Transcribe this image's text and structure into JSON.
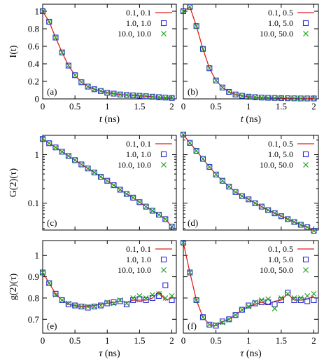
{
  "colors": {
    "line": "#e0201b",
    "square": "#2a2ad8",
    "cross": "#20a020"
  },
  "chart_data": [
    {
      "id": "a",
      "type": "line+scatter",
      "scale": "linear",
      "panel_label": "(a)",
      "xlabel_var": "t",
      "xlabel_unit": " (ns)",
      "ylabel": "I(t)",
      "xlim": [
        0,
        2.07
      ],
      "ylim": [
        0,
        1.08
      ],
      "xticks": [
        0,
        0.5,
        1,
        1.5,
        2
      ],
      "xticklabels": [
        "0",
        "0.5",
        "1",
        "1.5",
        "2"
      ],
      "yticks": [
        0,
        0.2,
        0.4,
        0.6,
        0.8,
        1
      ],
      "yticklabels": [
        "0",
        "0.2",
        "0.4",
        "0.6",
        "0.8",
        "1"
      ],
      "show_xticklabels": true,
      "show_yticklabels": true,
      "legend": [
        "0.1, 0.1",
        "1.0, 1.0",
        "10.0, 10.0"
      ],
      "x": [
        0,
        0.1,
        0.2,
        0.3,
        0.4,
        0.5,
        0.6,
        0.7,
        0.8,
        0.9,
        1.0,
        1.1,
        1.2,
        1.3,
        1.4,
        1.5,
        1.6,
        1.7,
        1.8,
        1.9,
        2.0
      ],
      "series": [
        {
          "name": "0.1, 0.1",
          "marker": "line",
          "values": [
            1.0,
            0.88,
            0.7,
            0.53,
            0.38,
            0.27,
            0.19,
            0.14,
            0.11,
            0.09,
            0.07,
            0.06,
            0.05,
            0.045,
            0.04,
            0.035,
            0.03,
            0.025,
            0.02,
            0.015,
            0.01
          ]
        },
        {
          "name": "1.0, 1.0",
          "marker": "square",
          "values": [
            1.0,
            0.88,
            0.7,
            0.53,
            0.38,
            0.27,
            0.19,
            0.14,
            0.11,
            0.09,
            0.07,
            0.06,
            0.05,
            0.045,
            0.04,
            0.035,
            0.03,
            0.025,
            0.02,
            0.015,
            0.01
          ]
        },
        {
          "name": "10.0, 10.0",
          "marker": "cross",
          "values": [
            1.0,
            0.88,
            0.7,
            0.53,
            0.38,
            0.27,
            0.19,
            0.14,
            0.11,
            0.09,
            0.07,
            0.06,
            0.05,
            0.045,
            0.04,
            0.035,
            0.03,
            0.025,
            0.02,
            0.015,
            0.01
          ]
        }
      ]
    },
    {
      "id": "b",
      "type": "line+scatter",
      "scale": "linear",
      "panel_label": "(b)",
      "xlabel_var": "t",
      "xlabel_unit": " (ns)",
      "ylabel": "",
      "xlim": [
        0,
        2.07
      ],
      "ylim": [
        0,
        1.08
      ],
      "xticks": [
        0,
        0.5,
        1,
        1.5,
        2
      ],
      "xticklabels": [
        "0",
        "0.5",
        "1",
        "1.5",
        "2"
      ],
      "yticks": [
        0,
        0.2,
        0.4,
        0.6,
        0.8,
        1
      ],
      "yticklabels": [],
      "show_xticklabels": true,
      "show_yticklabels": false,
      "legend": [
        "0.1, 0.5",
        "1.0, 5.0",
        "10.0, 50.0"
      ],
      "x": [
        0,
        0.1,
        0.2,
        0.3,
        0.4,
        0.5,
        0.6,
        0.7,
        0.8,
        0.9,
        1.0,
        1.1,
        1.2,
        1.3,
        1.4,
        1.5,
        1.6,
        1.7,
        1.8,
        1.9,
        2.0
      ],
      "series": [
        {
          "name": "0.1, 0.5",
          "marker": "line",
          "values": [
            1.0,
            1.05,
            0.83,
            0.57,
            0.35,
            0.21,
            0.13,
            0.08,
            0.05,
            0.035,
            0.025,
            0.02,
            0.015,
            0.012,
            0.01,
            0.008,
            0.007,
            0.006,
            0.005,
            0.005,
            0.005
          ]
        },
        {
          "name": "1.0, 5.0",
          "marker": "square",
          "values": [
            1.0,
            1.05,
            0.83,
            0.57,
            0.35,
            0.21,
            0.13,
            0.08,
            0.05,
            0.035,
            0.025,
            0.02,
            0.015,
            0.012,
            0.01,
            0.008,
            0.007,
            0.006,
            0.005,
            0.005,
            0.005
          ]
        },
        {
          "name": "10.0, 50.0",
          "marker": "cross",
          "values": [
            1.0,
            1.05,
            0.83,
            0.57,
            0.35,
            0.21,
            0.13,
            0.08,
            0.05,
            0.035,
            0.025,
            0.02,
            0.015,
            0.012,
            0.01,
            0.008,
            0.007,
            0.006,
            0.005,
            0.005,
            0.005
          ]
        }
      ]
    },
    {
      "id": "c",
      "type": "line+scatter",
      "scale": "log",
      "panel_label": "(c)",
      "xlabel_var": "",
      "xlabel_unit": "",
      "ylabel": "G(2)(τ)",
      "xlim": [
        0,
        2.07
      ],
      "ylim": [
        0.028,
        2.5
      ],
      "xticks": [
        0,
        0.5,
        1,
        1.5,
        2
      ],
      "xticklabels": [],
      "yticks": [
        0.1,
        1
      ],
      "yticklabels": [
        "0.1",
        "1"
      ],
      "show_xticklabels": false,
      "show_yticklabels": true,
      "legend": [
        "0.1, 0.1",
        "1.0, 1.0",
        "10.0, 10.0"
      ],
      "x": [
        0,
        0.1,
        0.2,
        0.3,
        0.4,
        0.5,
        0.6,
        0.7,
        0.8,
        0.9,
        1.0,
        1.1,
        1.2,
        1.3,
        1.4,
        1.5,
        1.6,
        1.7,
        1.8,
        1.9,
        2.0
      ],
      "series": [
        {
          "name": "0.1, 0.1",
          "marker": "line",
          "values": [
            2.1,
            1.72,
            1.41,
            1.15,
            0.94,
            0.77,
            0.63,
            0.52,
            0.43,
            0.35,
            0.29,
            0.235,
            0.19,
            0.155,
            0.13,
            0.105,
            0.085,
            0.07,
            0.058,
            0.047,
            0.033
          ]
        },
        {
          "name": "1.0, 1.0",
          "marker": "square",
          "values": [
            2.1,
            1.72,
            1.41,
            1.15,
            0.94,
            0.77,
            0.63,
            0.52,
            0.43,
            0.35,
            0.29,
            0.235,
            0.19,
            0.155,
            0.13,
            0.105,
            0.085,
            0.07,
            0.058,
            0.047,
            0.033
          ]
        },
        {
          "name": "10.0, 10.0",
          "marker": "cross",
          "values": [
            2.1,
            1.72,
            1.41,
            1.15,
            0.94,
            0.77,
            0.63,
            0.52,
            0.43,
            0.35,
            0.29,
            0.235,
            0.19,
            0.155,
            0.13,
            0.105,
            0.085,
            0.07,
            0.058,
            0.047,
            0.033
          ]
        }
      ]
    },
    {
      "id": "d",
      "type": "line+scatter",
      "scale": "log",
      "panel_label": "(d)",
      "xlabel_var": "",
      "xlabel_unit": "",
      "ylabel": "",
      "xlim": [
        0,
        2.07
      ],
      "ylim": [
        0.028,
        2.5
      ],
      "xticks": [
        0,
        0.5,
        1,
        1.5,
        2
      ],
      "xticklabels": [],
      "yticks": [
        0.1,
        1
      ],
      "yticklabels": [],
      "show_xticklabels": false,
      "show_yticklabels": false,
      "legend": [
        "0.1, 0.5",
        "1.0, 5.0",
        "10.0, 50.0"
      ],
      "x": [
        0,
        0.1,
        0.2,
        0.3,
        0.4,
        0.5,
        0.6,
        0.7,
        0.8,
        0.9,
        1.0,
        1.1,
        1.2,
        1.3,
        1.4,
        1.5,
        1.6,
        1.7,
        1.8,
        1.9,
        2.0
      ],
      "series": [
        {
          "name": "0.1, 0.5",
          "marker": "line",
          "values": [
            2.6,
            1.75,
            1.2,
            0.82,
            0.56,
            0.39,
            0.29,
            0.22,
            0.17,
            0.14,
            0.12,
            0.1,
            0.085,
            0.072,
            0.062,
            0.054,
            0.047,
            0.041,
            0.036,
            0.032,
            0.027
          ]
        },
        {
          "name": "1.0, 5.0",
          "marker": "square",
          "values": [
            2.6,
            1.75,
            1.2,
            0.82,
            0.56,
            0.39,
            0.29,
            0.22,
            0.17,
            0.14,
            0.12,
            0.1,
            0.085,
            0.072,
            0.062,
            0.054,
            0.047,
            0.041,
            0.036,
            0.032,
            0.027
          ]
        },
        {
          "name": "10.0, 50.0",
          "marker": "cross",
          "values": [
            2.6,
            1.75,
            1.2,
            0.82,
            0.56,
            0.39,
            0.29,
            0.22,
            0.17,
            0.14,
            0.12,
            0.1,
            0.085,
            0.072,
            0.062,
            0.054,
            0.047,
            0.041,
            0.036,
            0.032,
            0.027
          ]
        }
      ]
    },
    {
      "id": "e",
      "type": "line+scatter",
      "scale": "linear",
      "panel_label": "(e)",
      "xlabel_var": "τ",
      "xlabel_unit": " (ns)",
      "ylabel": "g(2)(τ)",
      "xlim": [
        0,
        2.07
      ],
      "ylim": [
        0.635,
        1.07
      ],
      "xticks": [
        0,
        0.5,
        1,
        1.5,
        2
      ],
      "xticklabels": [
        "0",
        "0.5",
        "1",
        "1.5",
        "2"
      ],
      "yticks": [
        0.7,
        0.8,
        0.9,
        1
      ],
      "yticklabels": [
        "0.7",
        "0.8",
        "0.9",
        "1"
      ],
      "show_xticklabels": true,
      "show_yticklabels": true,
      "legend": [
        "0.1, 0.1",
        "1.0, 1.0",
        "10.0, 10.0"
      ],
      "x": [
        0,
        0.1,
        0.2,
        0.3,
        0.4,
        0.5,
        0.6,
        0.7,
        0.8,
        0.9,
        1.0,
        1.1,
        1.2,
        1.3,
        1.4,
        1.5,
        1.6,
        1.7,
        1.8,
        1.9,
        2.0
      ],
      "series": [
        {
          "name": "0.1, 0.1",
          "marker": "line",
          "values": [
            0.92,
            0.87,
            0.82,
            0.79,
            0.77,
            0.765,
            0.76,
            0.76,
            0.765,
            0.77,
            0.775,
            0.78,
            0.785,
            0.78,
            0.79,
            0.79,
            0.79,
            0.8,
            0.83,
            0.79,
            0.8
          ]
        },
        {
          "name": "1.0, 1.0",
          "marker": "square",
          "values": [
            0.92,
            0.87,
            0.82,
            0.79,
            0.77,
            0.765,
            0.76,
            0.755,
            0.76,
            0.765,
            0.775,
            0.78,
            0.785,
            0.77,
            0.79,
            0.795,
            0.79,
            0.8,
            0.81,
            0.86,
            0.79
          ]
        },
        {
          "name": "10.0, 10.0",
          "marker": "cross",
          "values": [
            0.92,
            0.87,
            0.815,
            0.79,
            0.775,
            0.765,
            0.76,
            0.76,
            0.76,
            0.765,
            0.78,
            0.775,
            0.79,
            0.775,
            0.8,
            0.81,
            0.8,
            0.815,
            0.82,
            0.8,
            0.81
          ]
        }
      ]
    },
    {
      "id": "f",
      "type": "line+scatter",
      "scale": "linear",
      "panel_label": "(f)",
      "xlabel_var": "τ",
      "xlabel_unit": " (ns)",
      "ylabel": "",
      "xlim": [
        0,
        2.07
      ],
      "ylim": [
        0.635,
        1.07
      ],
      "xticks": [
        0,
        0.5,
        1,
        1.5,
        2
      ],
      "xticklabels": [
        "0",
        "0.5",
        "1",
        "1.5",
        "2"
      ],
      "yticks": [
        0.7,
        0.8,
        0.9,
        1
      ],
      "yticklabels": [],
      "show_xticklabels": true,
      "show_yticklabels": false,
      "legend": [
        "0.1, 0.5",
        "1.0, 5.0",
        "10.0, 50.0"
      ],
      "x": [
        0,
        0.1,
        0.2,
        0.3,
        0.4,
        0.5,
        0.6,
        0.7,
        0.8,
        0.9,
        1.0,
        1.1,
        1.2,
        1.3,
        1.4,
        1.5,
        1.6,
        1.7,
        1.8,
        1.9,
        2.0
      ],
      "series": [
        {
          "name": "0.1, 0.5",
          "marker": "line",
          "values": [
            1.06,
            0.92,
            0.79,
            0.71,
            0.675,
            0.67,
            0.69,
            0.7,
            0.72,
            0.745,
            0.76,
            0.77,
            0.78,
            0.77,
            0.785,
            0.79,
            0.82,
            0.79,
            0.79,
            0.795,
            0.81
          ]
        },
        {
          "name": "1.0, 5.0",
          "marker": "square",
          "values": [
            1.06,
            0.92,
            0.79,
            0.71,
            0.675,
            0.67,
            0.69,
            0.7,
            0.72,
            0.745,
            0.765,
            0.775,
            0.78,
            0.78,
            0.77,
            0.79,
            0.825,
            0.79,
            0.79,
            0.785,
            0.79
          ]
        },
        {
          "name": "10.0, 50.0",
          "marker": "cross",
          "values": [
            1.06,
            0.92,
            0.79,
            0.71,
            0.675,
            0.675,
            0.685,
            0.7,
            0.72,
            0.745,
            0.76,
            0.78,
            0.79,
            0.795,
            0.75,
            0.8,
            0.82,
            0.8,
            0.8,
            0.81,
            0.82
          ]
        }
      ]
    }
  ]
}
